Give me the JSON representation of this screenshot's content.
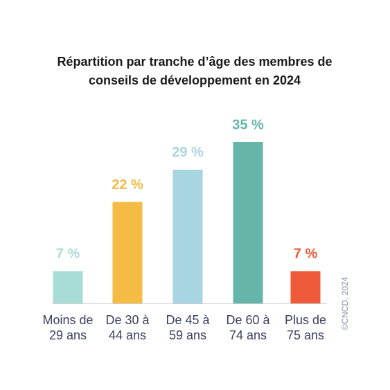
{
  "chart_data": {
    "type": "bar",
    "title": [
      "Répartition par tranche d’âge des membres de",
      "conseils de développement en 2024"
    ],
    "categories": [
      [
        "Moins de",
        "29 ans"
      ],
      [
        "De 30 à",
        "44 ans"
      ],
      [
        "De 45 à",
        "59 ans"
      ],
      [
        "De 60 à",
        "74 ans"
      ],
      [
        "Plus de",
        "75 ans"
      ]
    ],
    "values": [
      7,
      22,
      29,
      35,
      7
    ],
    "value_labels": [
      "7 %",
      "22 %",
      "29 %",
      "35 %",
      "7 %"
    ],
    "colors": [
      "#a8ddd6",
      "#f4bb45",
      "#a8d5e2",
      "#65b5a8",
      "#ef5a3a"
    ],
    "ylim": [
      0,
      35
    ],
    "credit": "©CNCD, 2024"
  }
}
